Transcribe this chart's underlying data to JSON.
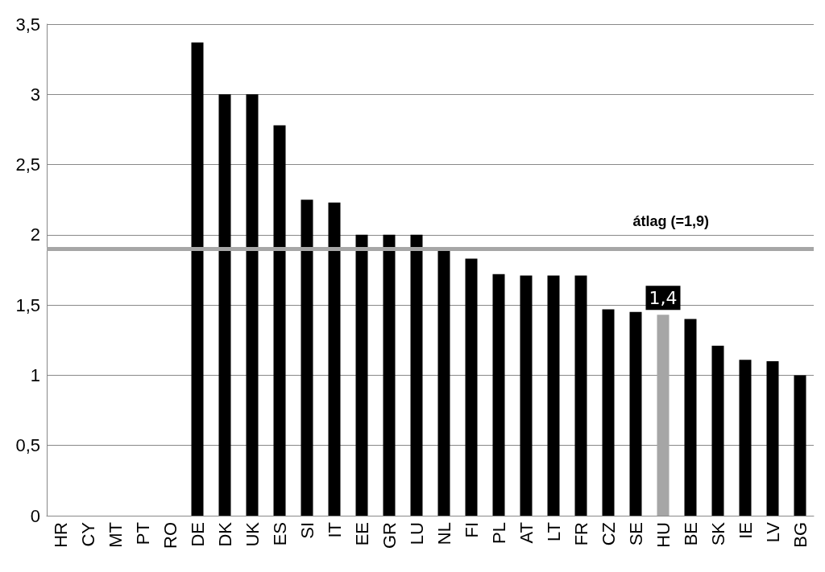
{
  "chart_data": {
    "type": "bar",
    "categories": [
      "HR",
      "CY",
      "MT",
      "PT",
      "RO",
      "DE",
      "DK",
      "UK",
      "ES",
      "SI",
      "IT",
      "EE",
      "GR",
      "LU",
      "NL",
      "FI",
      "PL",
      "AT",
      "LT",
      "FR",
      "CZ",
      "SE",
      "HU",
      "BE",
      "SK",
      "IE",
      "LV",
      "BG"
    ],
    "values": [
      0,
      0,
      0,
      0,
      0,
      3.37,
      3,
      3,
      2.78,
      2.25,
      2.23,
      2,
      2,
      2,
      1.9,
      1.83,
      1.72,
      1.71,
      1.71,
      1.71,
      1.47,
      1.45,
      1.43,
      1.4,
      1.21,
      1.11,
      1.1,
      1
    ],
    "colors": [
      "#000000",
      "#000000",
      "#000000",
      "#000000",
      "#000000",
      "#000000",
      "#000000",
      "#000000",
      "#000000",
      "#000000",
      "#000000",
      "#000000",
      "#000000",
      "#000000",
      "#000000",
      "#000000",
      "#000000",
      "#000000",
      "#000000",
      "#000000",
      "#000000",
      "#000000",
      "#a6a6a6",
      "#000000",
      "#000000",
      "#000000",
      "#000000",
      "#000000"
    ],
    "value_labels": [
      null,
      null,
      null,
      null,
      null,
      null,
      null,
      null,
      null,
      null,
      null,
      null,
      null,
      null,
      null,
      null,
      null,
      null,
      null,
      null,
      null,
      null,
      "1,4",
      null,
      null,
      null,
      null,
      null
    ],
    "ylim": [
      0,
      3.5
    ],
    "yticks": [
      0,
      {
        "value": 0.5,
        "label": "0,5"
      },
      1,
      {
        "value": 1.5,
        "label": "1,5"
      },
      2,
      {
        "value": 2.5,
        "label": "2,5"
      },
      3,
      {
        "value": 3.5,
        "label": "3,5"
      }
    ],
    "grid": "y",
    "ref_lines": [
      {
        "axis": "y",
        "value": 1.9,
        "label": "átlag (=1,9)",
        "color": "#a6a6a6"
      }
    ]
  }
}
